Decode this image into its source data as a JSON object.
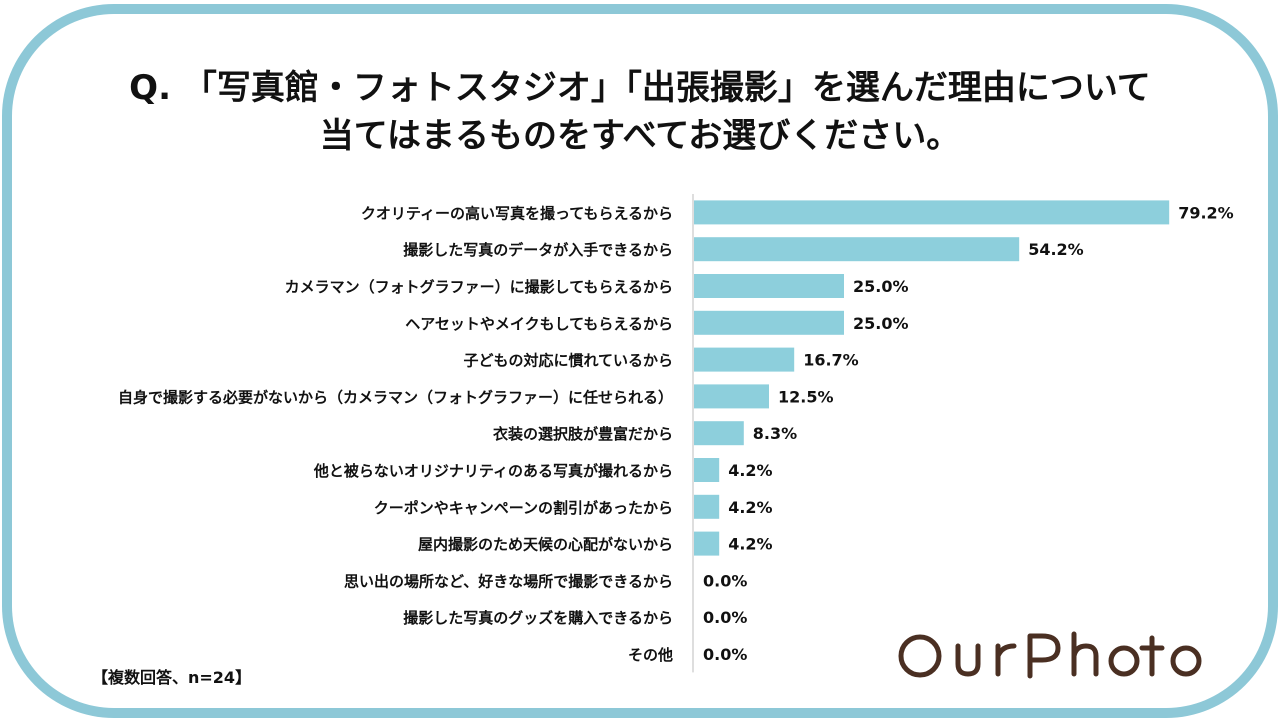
{
  "title": {
    "line1": "Q. 「写真館・フォトスタジオ」「出張撮影」を選んだ理由について",
    "line2": "当てはまるものをすべてお選びください。"
  },
  "note": "【複数回答、n=24】",
  "logo_text": "OurPhoto",
  "colors": {
    "frame": "#8dc8d7",
    "bar": "#8dcfdc",
    "text": "#111111",
    "axis": "#bdbdbd"
  },
  "chart_data": {
    "type": "bar",
    "orientation": "horizontal",
    "categories": [
      "クオリティーの高い写真を撮ってもらえるから",
      "撮影した写真のデータが入手できるから",
      "カメラマン（フォトグラファー）に撮影してもらえるから",
      "ヘアセットやメイクもしてもらえるから",
      "子どもの対応に慣れているから",
      "自身で撮影する必要がないから（カメラマン（フォトグラファー）に任せられる）",
      "衣装の選択肢が豊富だから",
      "他と被らないオリジナリティのある写真が撮れるから",
      "クーポンやキャンペーンの割引があったから",
      "屋内撮影のため天候の心配がないから",
      "思い出の場所など、好きな場所で撮影できるから",
      "撮影した写真のグッズを購入できるから",
      "その他"
    ],
    "values": [
      79.2,
      54.2,
      25.0,
      25.0,
      16.7,
      12.5,
      8.3,
      4.2,
      4.2,
      4.2,
      0.0,
      0.0,
      0.0
    ],
    "value_labels": [
      "79.2%",
      "54.2%",
      "25.0%",
      "25.0%",
      "16.7%",
      "12.5%",
      "8.3%",
      "4.2%",
      "4.2%",
      "4.2%",
      "0.0%",
      "0.0%",
      "0.0%"
    ],
    "unit": "%",
    "xlim": [
      0,
      100
    ],
    "grid": false,
    "legend": "none"
  }
}
